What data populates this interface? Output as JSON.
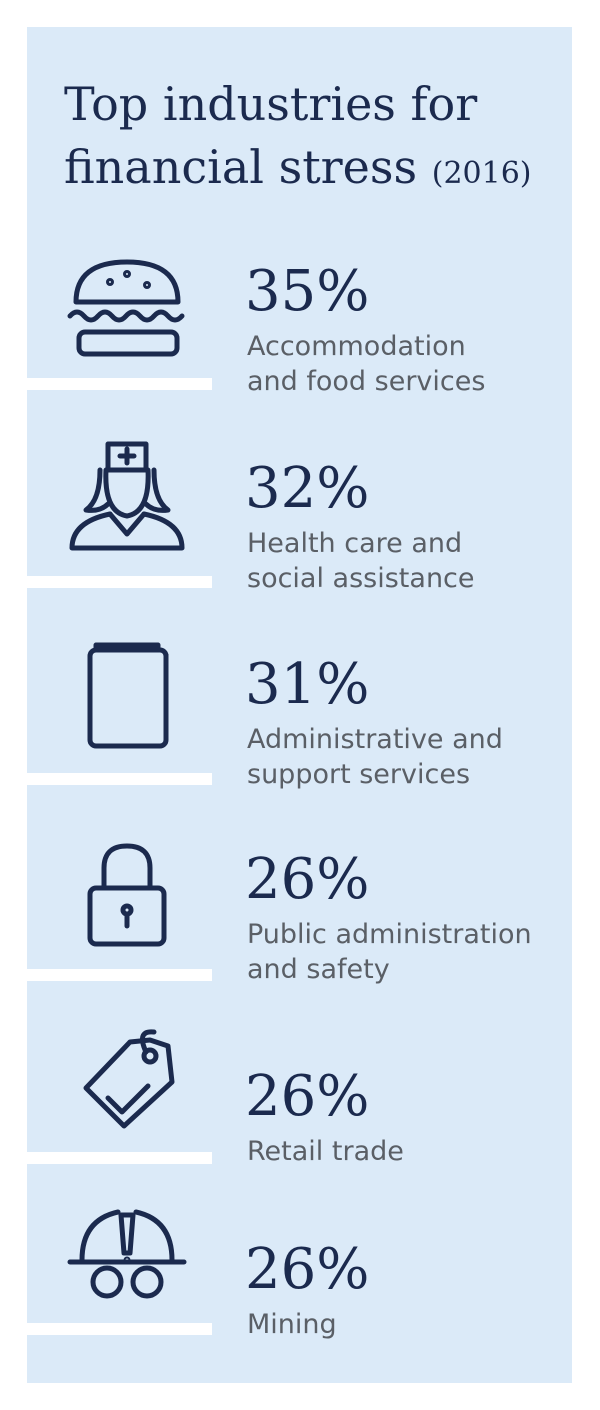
{
  "header": {
    "title_line1": "Top industries for",
    "title_line2": "financial stress",
    "title_year": "(2016)"
  },
  "items": [
    {
      "value": "35%",
      "label_lines": [
        "Accommodation",
        "and food services"
      ]
    },
    {
      "value": "32%",
      "label_lines": [
        "Health care and",
        "social assistance"
      ]
    },
    {
      "value": "31%",
      "label_lines": [
        "Administrative and",
        "support services"
      ]
    },
    {
      "value": "26%",
      "label_lines": [
        "Public administration",
        "and safety"
      ]
    },
    {
      "value": "26%",
      "label_lines": [
        "Retail trade"
      ]
    },
    {
      "value": "26%",
      "label_lines": [
        "Mining"
      ]
    }
  ]
}
